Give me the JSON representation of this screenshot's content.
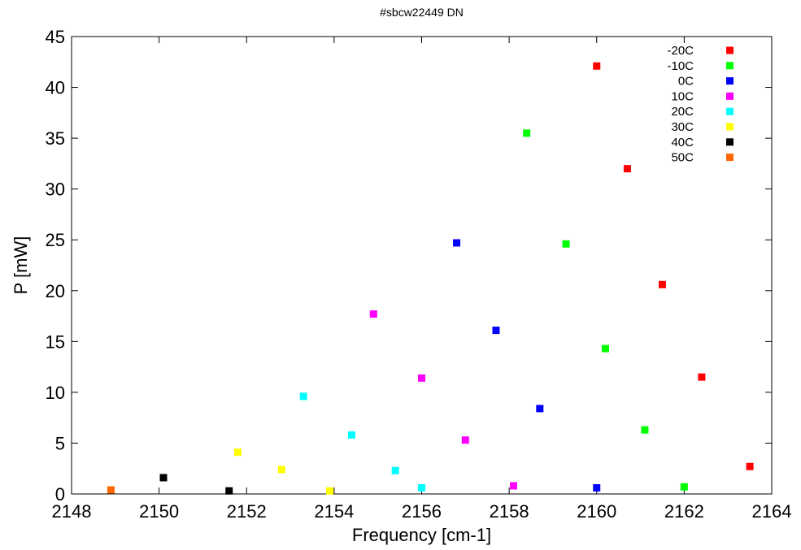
{
  "chart_data": {
    "type": "scatter",
    "title": "#sbcw22449 DN",
    "xlabel": "Frequency [cm-1]",
    "ylabel": "P [mW]",
    "xlim": [
      2148,
      2164
    ],
    "ylim": [
      0,
      45
    ],
    "xticks": [
      2148,
      2150,
      2152,
      2154,
      2156,
      2158,
      2160,
      2162,
      2164
    ],
    "yticks": [
      0,
      5,
      10,
      15,
      20,
      25,
      30,
      35,
      40,
      45
    ],
    "grid": false,
    "legend_position": "top-right",
    "series": [
      {
        "name": "-20C",
        "color": "#ff0000",
        "points": [
          [
            2160.0,
            42.1
          ],
          [
            2160.7,
            32.0
          ],
          [
            2161.5,
            20.6
          ],
          [
            2162.4,
            11.5
          ],
          [
            2163.5,
            2.7
          ]
        ]
      },
      {
        "name": "-10C",
        "color": "#00ff00",
        "points": [
          [
            2158.4,
            35.5
          ],
          [
            2159.3,
            24.6
          ],
          [
            2160.2,
            14.3
          ],
          [
            2161.1,
            6.3
          ],
          [
            2162.0,
            0.7
          ]
        ]
      },
      {
        "name": "0C",
        "color": "#0000ff",
        "points": [
          [
            2156.8,
            24.7
          ],
          [
            2157.7,
            16.1
          ],
          [
            2158.7,
            8.4
          ],
          [
            2160.0,
            0.6
          ]
        ]
      },
      {
        "name": "10C",
        "color": "#ff00ff",
        "points": [
          [
            2154.9,
            17.7
          ],
          [
            2156.0,
            11.4
          ],
          [
            2157.0,
            5.3
          ],
          [
            2158.1,
            0.8
          ]
        ]
      },
      {
        "name": "20C",
        "color": "#00ffff",
        "points": [
          [
            2153.3,
            9.6
          ],
          [
            2154.4,
            5.8
          ],
          [
            2155.4,
            2.3
          ],
          [
            2156.0,
            0.6
          ]
        ]
      },
      {
        "name": "30C",
        "color": "#ffff00",
        "points": [
          [
            2151.8,
            4.1
          ],
          [
            2152.8,
            2.4
          ],
          [
            2153.9,
            0.3
          ]
        ]
      },
      {
        "name": "40C",
        "color": "#000000",
        "points": [
          [
            2150.1,
            1.6
          ],
          [
            2151.6,
            0.3
          ]
        ]
      },
      {
        "name": "50C",
        "color": "#ff6600",
        "points": [
          [
            2148.9,
            0.4
          ]
        ]
      }
    ]
  }
}
